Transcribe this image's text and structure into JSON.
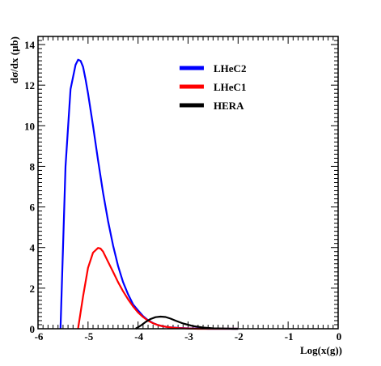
{
  "chart_data": {
    "type": "line",
    "title": "",
    "xlabel": "Log(x(g))",
    "ylabel": "dσ/dx (μb)",
    "xlim": [
      -6,
      0
    ],
    "ylim": [
      0,
      14.4
    ],
    "x_ticks": [
      -6,
      -5,
      -4,
      -3,
      -2,
      -1,
      0
    ],
    "x_tick_labels": [
      "-6",
      "-5",
      "-4",
      "-3",
      "-2",
      "-1",
      "0"
    ],
    "y_ticks": [
      0,
      2,
      4,
      6,
      8,
      10,
      12,
      14
    ],
    "y_tick_labels": [
      "0",
      "2",
      "4",
      "6",
      "8",
      "10",
      "12",
      "14"
    ],
    "grid": false,
    "legend_position": "top-right",
    "series": [
      {
        "name": "LHeC2",
        "color": "#0000ff",
        "x": [
          -5.55,
          -5.45,
          -5.35,
          -5.25,
          -5.2,
          -5.15,
          -5.1,
          -5.05,
          -5.0,
          -4.95,
          -4.9,
          -4.8,
          -4.7,
          -4.6,
          -4.5,
          -4.4,
          -4.3,
          -4.2,
          -4.1,
          -4.0,
          -3.9,
          -3.8,
          -3.7,
          -3.6,
          -3.5,
          -3.4,
          -3.2,
          -3.0,
          -2.8,
          -2.6,
          -2.4,
          -2.2,
          -2.0
        ],
        "y": [
          0.0,
          8.0,
          11.8,
          13.0,
          13.25,
          13.2,
          12.9,
          12.3,
          11.6,
          10.8,
          10.0,
          8.3,
          6.7,
          5.3,
          4.1,
          3.1,
          2.3,
          1.7,
          1.2,
          0.9,
          0.62,
          0.42,
          0.28,
          0.18,
          0.12,
          0.08,
          0.04,
          0.02,
          0.01,
          0.0,
          0.0,
          0.0,
          0.0
        ]
      },
      {
        "name": "LHeC1",
        "color": "#ff0000",
        "x": [
          -5.2,
          -5.1,
          -5.0,
          -4.9,
          -4.8,
          -4.75,
          -4.7,
          -4.6,
          -4.5,
          -4.4,
          -4.3,
          -4.2,
          -4.1,
          -4.0,
          -3.9,
          -3.8,
          -3.7,
          -3.6,
          -3.5,
          -3.4,
          -3.3,
          -3.2,
          -3.0,
          -2.8,
          -2.6,
          -2.4,
          -2.2,
          -2.0
        ],
        "y": [
          0.0,
          1.6,
          3.0,
          3.75,
          3.98,
          3.95,
          3.8,
          3.3,
          2.8,
          2.3,
          1.85,
          1.45,
          1.1,
          0.8,
          0.58,
          0.4,
          0.27,
          0.18,
          0.12,
          0.08,
          0.05,
          0.03,
          0.01,
          0.0,
          0.0,
          0.0,
          0.0,
          0.0
        ]
      },
      {
        "name": "HERA",
        "color": "#000000",
        "x": [
          -4.05,
          -3.95,
          -3.85,
          -3.75,
          -3.65,
          -3.55,
          -3.45,
          -3.35,
          -3.25,
          -3.1,
          -2.9,
          -2.7,
          -2.5,
          -2.3,
          -2.1,
          -2.0
        ],
        "y": [
          0.0,
          0.15,
          0.33,
          0.48,
          0.57,
          0.6,
          0.58,
          0.5,
          0.4,
          0.26,
          0.13,
          0.06,
          0.02,
          0.01,
          0.0,
          0.0
        ]
      }
    ]
  }
}
